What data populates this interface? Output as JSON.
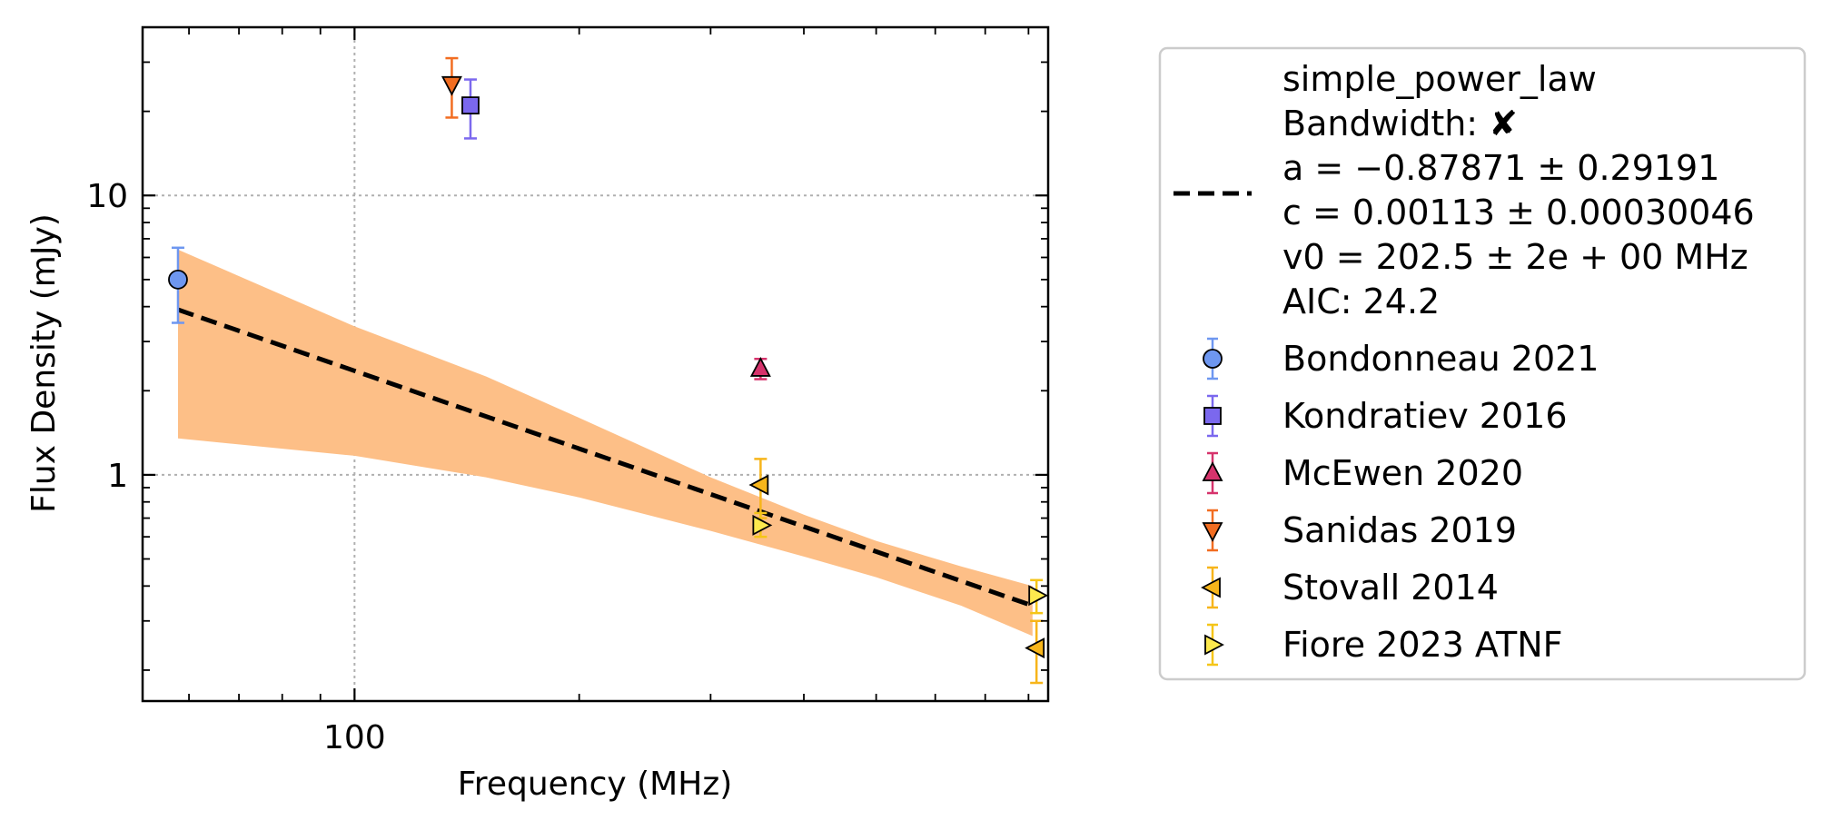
{
  "chart_data": {
    "type": "scatter",
    "xlabel": "Frequency (MHz)",
    "ylabel": "Flux Density (mJy)",
    "x_scale": "log",
    "y_scale": "log",
    "xlim": [
      52,
      850
    ],
    "ylim": [
      0.155,
      40
    ],
    "x_ticks": [
      {
        "value": 100,
        "label": "100"
      }
    ],
    "y_ticks": [
      {
        "value": 1,
        "label": "1"
      },
      {
        "value": 10,
        "label": "10"
      }
    ],
    "grid": true,
    "legend_position": "outside-right",
    "fit": {
      "name": "simple_power_law",
      "style": "dashed",
      "color": "#000000",
      "band_color": "#fdbf87",
      "lines": [
        "simple_power_law",
        "Bandwidth: ✘",
        "a = −0.87871 ± 0.29191",
        "c = 0.00113 ± 0.00030046",
        "v0 = 202.5 ± 2e + 00 MHz",
        "AIC: 24.2"
      ],
      "line_points": [
        {
          "x": 58,
          "y": 3.9
        },
        {
          "x": 810,
          "y": 0.34
        }
      ],
      "band_upper": [
        {
          "x": 58,
          "y": 6.4
        },
        {
          "x": 100,
          "y": 3.4
        },
        {
          "x": 150,
          "y": 2.25
        },
        {
          "x": 200,
          "y": 1.6
        },
        {
          "x": 300,
          "y": 0.98
        },
        {
          "x": 400,
          "y": 0.72
        },
        {
          "x": 500,
          "y": 0.58
        },
        {
          "x": 650,
          "y": 0.47
        },
        {
          "x": 810,
          "y": 0.4
        }
      ],
      "band_lower": [
        {
          "x": 810,
          "y": 0.265
        },
        {
          "x": 650,
          "y": 0.34
        },
        {
          "x": 500,
          "y": 0.43
        },
        {
          "x": 400,
          "y": 0.51
        },
        {
          "x": 300,
          "y": 0.63
        },
        {
          "x": 200,
          "y": 0.83
        },
        {
          "x": 150,
          "y": 0.98
        },
        {
          "x": 100,
          "y": 1.17
        },
        {
          "x": 58,
          "y": 1.35
        }
      ]
    },
    "series": [
      {
        "name": "Bondonneau 2021",
        "marker": "circle",
        "color": "#6e97f0",
        "ecolor": "#6e97f0",
        "points": [
          {
            "x": 58,
            "y": 5.0,
            "lo": 3.5,
            "hi": 6.5
          }
        ]
      },
      {
        "name": "Kondratiev 2016",
        "marker": "square",
        "color": "#7b68ee",
        "ecolor": "#7b68ee",
        "points": [
          {
            "x": 143,
            "y": 21,
            "lo": 16,
            "hi": 26
          }
        ]
      },
      {
        "name": "McEwen 2020",
        "marker": "triangle-up",
        "color": "#d6336c",
        "ecolor": "#d6336c",
        "points": [
          {
            "x": 350,
            "y": 2.4,
            "lo": 2.2,
            "hi": 2.6
          }
        ]
      },
      {
        "name": "Sanidas 2019",
        "marker": "triangle-down",
        "color": "#f26d21",
        "ecolor": "#f26d21",
        "points": [
          {
            "x": 135,
            "y": 25,
            "lo": 19,
            "hi": 31
          }
        ]
      },
      {
        "name": "Stovall 2014",
        "marker": "triangle-left",
        "color": "#f7b51a",
        "ecolor": "#f7b51a",
        "points": [
          {
            "x": 350,
            "y": 0.92,
            "lo": 0.7,
            "hi": 1.14
          },
          {
            "x": 820,
            "y": 0.24,
            "lo": 0.18,
            "hi": 0.3
          }
        ]
      },
      {
        "name": "Fiore 2023 ATNF",
        "marker": "triangle-right",
        "color": "#fde94e",
        "ecolor": "#f5c518",
        "points": [
          {
            "x": 350,
            "y": 0.66,
            "lo": 0.6,
            "hi": 0.73
          },
          {
            "x": 820,
            "y": 0.37,
            "lo": 0.32,
            "hi": 0.42
          }
        ]
      }
    ]
  }
}
